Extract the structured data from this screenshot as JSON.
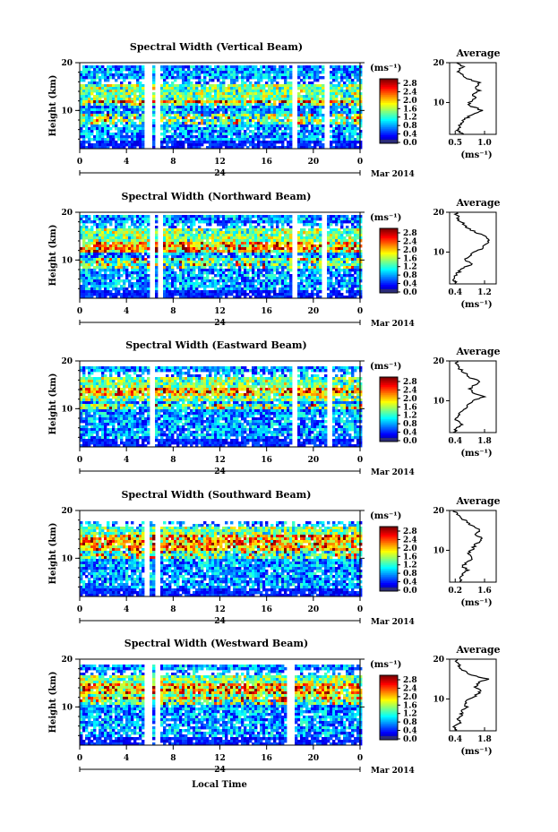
{
  "figure": {
    "xlabel": "Local Time",
    "ylabel": "Height (km)",
    "date_label": "Mar 2014",
    "day_label": "24",
    "unit_label": "(ms⁻¹)",
    "average_title": "Average",
    "average_xlabel": "(ms⁻¹)"
  },
  "chart_data": [
    {
      "type": "heatmap",
      "title": "Spectral Width (Vertical Beam)",
      "xlabel": "Local Time",
      "ylabel": "Height (km)",
      "xlim": [
        0,
        24
      ],
      "xticks": [
        "0",
        "4",
        "8",
        "12",
        "16",
        "20",
        "0"
      ],
      "ylim": [
        2,
        20
      ],
      "yticks": [
        "10",
        "20"
      ],
      "colorbar": {
        "label": "(ms⁻¹)",
        "ticks": [
          "2.8",
          "2.4",
          "2.0",
          "1.6",
          "1.2",
          "0.8",
          "0.4",
          "0.0"
        ],
        "range": [
          0,
          3.0
        ]
      },
      "gaps_hours": [
        [
          5.5,
          6.0
        ],
        [
          6.3,
          6.9
        ],
        [
          18.0,
          18.6
        ],
        [
          20.8,
          21.2
        ]
      ],
      "noise_layer_km": [
        16,
        17
      ],
      "signal_top_km": 19.5,
      "enhanced_layers_km": [
        [
          7.5,
          9.5
        ],
        [
          11.5,
          12.5
        ]
      ],
      "average_profile": {
        "xlim": [
          0.4,
          1.2
        ],
        "xticks": [
          "0.5",
          "1.0"
        ],
        "height_km": [
          2,
          3,
          4,
          5,
          6,
          7,
          8,
          9,
          10,
          11,
          12,
          13,
          14,
          15,
          16,
          17,
          18,
          19,
          20
        ],
        "value": [
          0.62,
          0.55,
          0.57,
          0.6,
          0.68,
          0.8,
          0.95,
          0.78,
          0.72,
          0.85,
          0.8,
          0.9,
          0.85,
          0.92,
          0.7,
          0.6,
          0.55,
          0.62,
          0.55
        ]
      }
    },
    {
      "type": "heatmap",
      "title": "Spectral Width (Northward Beam)",
      "xlabel": "Local Time",
      "ylabel": "Height (km)",
      "xlim": [
        0,
        24
      ],
      "xticks": [
        "0",
        "4",
        "8",
        "12",
        "16",
        "20",
        "0"
      ],
      "ylim": [
        2,
        20
      ],
      "yticks": [
        "10",
        "20"
      ],
      "colorbar": {
        "label": "(ms⁻¹)",
        "ticks": [
          "2.8",
          "2.4",
          "2.0",
          "1.6",
          "1.2",
          "0.8",
          "0.4",
          "0.0"
        ],
        "range": [
          0,
          3.0
        ]
      },
      "gaps_hours": [
        [
          5.8,
          6.4
        ],
        [
          6.6,
          7.0
        ],
        [
          18.0,
          18.6
        ],
        [
          20.6,
          21.0
        ]
      ],
      "noise_layer_km": [
        17,
        18
      ],
      "signal_top_km": 19.5,
      "enhanced_layers_km": [
        [
          8.5,
          10.5
        ],
        [
          12,
          14
        ]
      ],
      "average_profile": {
        "xlim": [
          0.4,
          1.4
        ],
        "xticks": [
          "0.4",
          "1.2"
        ],
        "height_km": [
          2,
          3,
          4,
          5,
          6,
          7,
          8,
          9,
          10,
          11,
          12,
          13,
          14,
          15,
          16,
          17,
          18,
          19,
          20
        ],
        "value": [
          0.55,
          0.5,
          0.52,
          0.6,
          0.7,
          0.9,
          0.75,
          0.8,
          0.95,
          1.1,
          1.2,
          1.25,
          1.15,
          0.95,
          0.8,
          0.7,
          0.6,
          0.58,
          0.52
        ]
      }
    },
    {
      "type": "heatmap",
      "title": "Spectral Width (Eastward Beam)",
      "xlabel": "Local Time",
      "ylabel": "Height (km)",
      "xlim": [
        0,
        24
      ],
      "xticks": [
        "0",
        "4",
        "8",
        "12",
        "16",
        "20",
        "0"
      ],
      "ylim": [
        2,
        20
      ],
      "yticks": [
        "10",
        "20"
      ],
      "colorbar": {
        "label": "(ms⁻¹)",
        "ticks": [
          "2.8",
          "2.4",
          "2.0",
          "1.6",
          "1.2",
          "0.8",
          "0.4",
          "0.0"
        ],
        "range": [
          0,
          3.0
        ]
      },
      "gaps_hours": [
        [
          5.8,
          6.3
        ],
        [
          18.0,
          18.5
        ],
        [
          21.0,
          21.4
        ]
      ],
      "noise_layer_km": [
        17,
        18
      ],
      "signal_top_km": 19,
      "enhanced_layers_km": [
        [
          10,
          11.5
        ],
        [
          13,
          14.5
        ]
      ],
      "average_profile": {
        "xlim": [
          0.4,
          1.8
        ],
        "xticks": [
          "0.4",
          "1.8"
        ],
        "height_km": [
          2,
          3,
          4,
          5,
          6,
          7,
          8,
          9,
          10,
          11,
          12,
          13,
          14,
          15,
          16,
          17,
          18,
          19,
          20
        ],
        "value": [
          0.55,
          0.6,
          0.75,
          0.6,
          0.65,
          0.75,
          0.85,
          0.95,
          1.1,
          1.45,
          1.1,
          1.0,
          1.15,
          1.3,
          0.95,
          0.85,
          0.7,
          0.65,
          0.6
        ]
      }
    },
    {
      "type": "heatmap",
      "title": "Spectral Width (Southward Beam)",
      "xlabel": "Local Time",
      "ylabel": "Height (km)",
      "xlim": [
        0,
        24
      ],
      "xticks": [
        "0",
        "4",
        "8",
        "12",
        "16",
        "20",
        "0"
      ],
      "ylim": [
        2,
        20
      ],
      "yticks": [
        "10",
        "20"
      ],
      "colorbar": {
        "label": "(ms⁻¹)",
        "ticks": [
          "2.8",
          "2.4",
          "2.0",
          "1.6",
          "1.2",
          "0.8",
          "0.4",
          "0.0"
        ],
        "range": [
          0,
          3.0
        ]
      },
      "gaps_hours": [
        [
          5.5,
          5.9
        ],
        [
          6.3,
          6.7
        ]
      ],
      "noise_layer_km": [
        17,
        18
      ],
      "signal_top_km": 18,
      "enhanced_layers_km": [
        [
          10,
          13
        ],
        [
          13,
          15
        ]
      ],
      "average_profile": {
        "xlim": [
          0.2,
          1.6
        ],
        "xticks": [
          "0.2",
          "1.6"
        ],
        "height_km": [
          2,
          3,
          4,
          5,
          6,
          7,
          8,
          9,
          10,
          11,
          12,
          13,
          14,
          15,
          16,
          17,
          18,
          19,
          20
        ],
        "value": [
          0.55,
          0.5,
          0.6,
          0.75,
          0.6,
          0.7,
          0.9,
          0.75,
          0.85,
          0.95,
          1.05,
          1.15,
          1.0,
          1.1,
          0.9,
          0.75,
          0.55,
          0.4,
          0.35
        ]
      }
    },
    {
      "type": "heatmap",
      "title": "Spectral Width (Westward Beam)",
      "xlabel": "Local Time",
      "ylabel": "Height (km)",
      "xlim": [
        0,
        24
      ],
      "xticks": [
        "0",
        "4",
        "8",
        "12",
        "16",
        "20",
        "0"
      ],
      "ylim": [
        2,
        20
      ],
      "yticks": [
        "10",
        "20"
      ],
      "colorbar": {
        "label": "(ms⁻¹)",
        "ticks": [
          "2.8",
          "2.4",
          "2.0",
          "1.6",
          "1.2",
          "0.8",
          "0.4",
          "0.0"
        ],
        "range": [
          0,
          3.0
        ]
      },
      "gaps_hours": [
        [
          5.5,
          6.0
        ],
        [
          6.3,
          6.7
        ],
        [
          17.6,
          18.2
        ]
      ],
      "noise_layer_km": [
        17,
        18
      ],
      "signal_top_km": 19,
      "enhanced_layers_km": [
        [
          11,
          12.5
        ],
        [
          13,
          15
        ]
      ],
      "average_profile": {
        "xlim": [
          0.4,
          1.8
        ],
        "xticks": [
          "0.4",
          "1.8"
        ],
        "height_km": [
          2,
          3,
          4,
          5,
          6,
          7,
          8,
          9,
          10,
          11,
          12,
          13,
          14,
          15,
          16,
          17,
          18,
          19,
          20
        ],
        "value": [
          0.6,
          0.55,
          0.7,
          0.65,
          0.75,
          0.8,
          0.9,
          0.85,
          1.0,
          1.2,
          1.35,
          1.15,
          1.25,
          1.55,
          1.05,
          0.85,
          0.7,
          0.65,
          0.6
        ]
      }
    }
  ]
}
